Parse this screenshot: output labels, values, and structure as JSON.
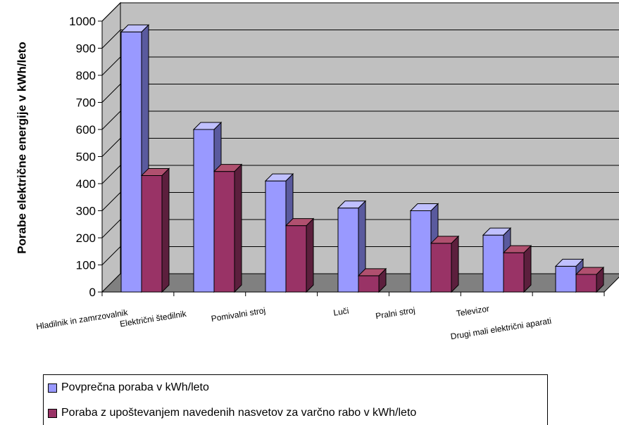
{
  "chart_data": {
    "type": "bar",
    "title": "",
    "ylabel": "Porabe električne energije v kWh/leto",
    "xlabel": "",
    "ylim": [
      0,
      1000
    ],
    "yticks": [
      0,
      100,
      200,
      300,
      400,
      500,
      600,
      700,
      800,
      900,
      1000
    ],
    "categories": [
      "Hladilnik in zamrzovalnik",
      "Električni štedilnik",
      "Pomivalni stroj",
      "Luči",
      "Pralni stroj",
      "Televizor",
      "Drugi mali električni aparati"
    ],
    "series": [
      {
        "name": "Povprečna poraba v kWh/leto",
        "values": [
          960,
          600,
          410,
          310,
          300,
          210,
          95
        ],
        "color": "#9999ff",
        "top_color": "#c0c0ff",
        "side_color": "#5a5a9e"
      },
      {
        "name": "Poraba z upoštevanjem navedenih nasvetov za varčno rabo v kWh/leto",
        "values": [
          430,
          445,
          245,
          60,
          180,
          145,
          65
        ],
        "color": "#993366",
        "top_color": "#b0506f",
        "side_color": "#5c1f3d"
      }
    ],
    "grid": true,
    "legend_position": "bottom",
    "wall_color": "#c0c0c0",
    "floor_color": "#808080"
  }
}
